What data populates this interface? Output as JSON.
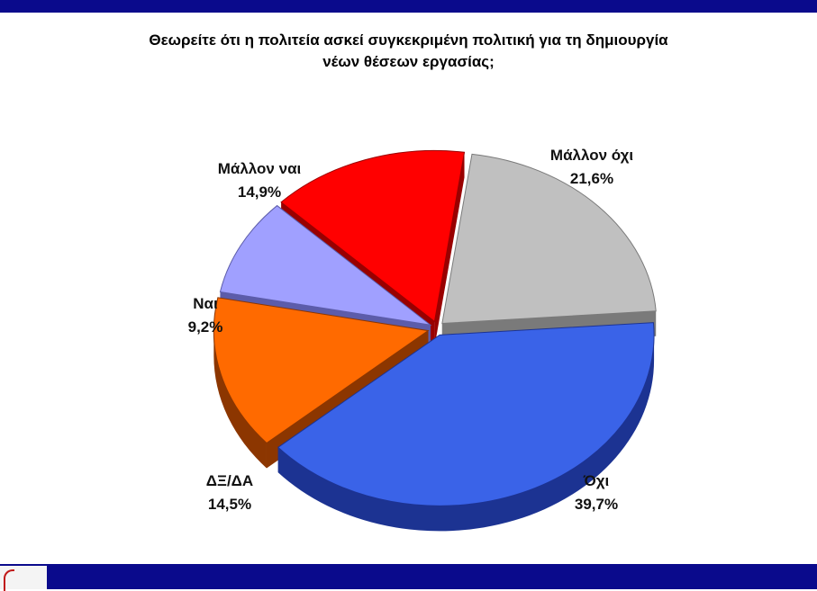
{
  "title_lines": [
    "Θεωρείτε ότι η πολιτεία ασκεί συγκεκριμένη πολιτική για τη δημιουργία",
    "νέων θέσεων εργασίας;"
  ],
  "chart_data": {
    "type": "pie",
    "title": "Θεωρείτε ότι η πολιτεία ασκεί συγκεκριμένη πολιτική για τη δημιουργία νέων θέσεων εργασίας;",
    "slices": [
      {
        "label": "Μάλλον όχι",
        "value": 21.6,
        "value_label": "21,6%",
        "color": "#c0c0c0",
        "side": "#7a7a7a"
      },
      {
        "label": "Όχι",
        "value": 39.7,
        "value_label": "39,7%",
        "color": "#3a63e8",
        "side": "#1c3392"
      },
      {
        "label": "ΔΞ/ΔΑ",
        "value": 14.5,
        "value_label": "14,5%",
        "color": "#ff6a00",
        "side": "#8c3600"
      },
      {
        "label": "Ναι",
        "value": 9.2,
        "value_label": "9,2%",
        "color": "#a0a0ff",
        "side": "#5c5caa"
      },
      {
        "label": "Μάλλον ναι",
        "value": 14.9,
        "value_label": "14,9%",
        "color": "#ff0000",
        "side": "#990000"
      }
    ],
    "legend": "none",
    "three_d": true
  }
}
